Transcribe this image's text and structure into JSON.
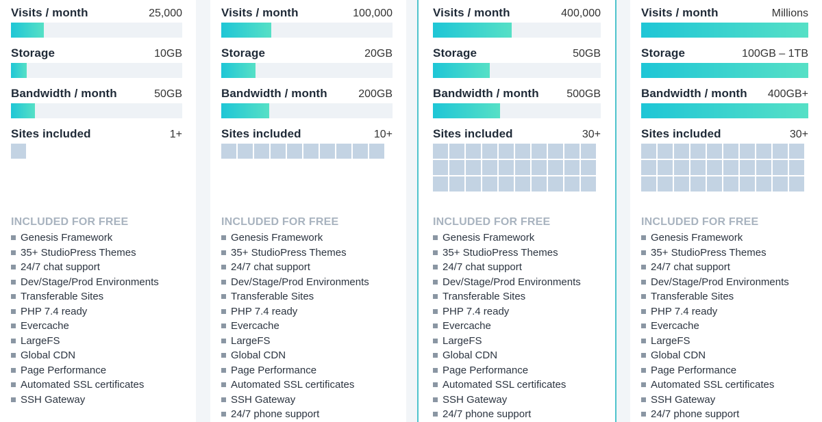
{
  "colors": {
    "accent_start": "#1ec6d6",
    "accent_end": "#56e0c6",
    "site_block": "#c3d3e3",
    "featured_border": "#4ec3cc"
  },
  "labels": {
    "visits": "Visits / month",
    "storage": "Storage",
    "bandwidth": "Bandwidth / month",
    "sites": "Sites included",
    "free_title": "INCLUDED FOR FREE"
  },
  "plans": [
    {
      "visits": "25,000",
      "visits_level": 0.19,
      "storage": "10GB",
      "storage_level": 0.09,
      "bandwidth": "50GB",
      "bandwidth_level": 0.14,
      "sites": "1+",
      "site_blocks": 1,
      "features": [
        "Genesis Framework",
        "35+ StudioPress Themes",
        "24/7 chat support",
        "Dev/Stage/Prod Environments",
        "Transferable Sites",
        "PHP 7.4 ready",
        "Evercache",
        "LargeFS",
        "Global CDN",
        "Page Performance",
        "Automated SSL certificates",
        "SSH Gateway"
      ]
    },
    {
      "visits": "100,000",
      "visits_level": 0.29,
      "storage": "20GB",
      "storage_level": 0.2,
      "bandwidth": "200GB",
      "bandwidth_level": 0.28,
      "sites": "10+",
      "site_blocks": 10,
      "features": [
        "Genesis Framework",
        "35+ StudioPress Themes",
        "24/7 chat support",
        "Dev/Stage/Prod Environments",
        "Transferable Sites",
        "PHP 7.4 ready",
        "Evercache",
        "LargeFS",
        "Global CDN",
        "Page Performance",
        "Automated SSL certificates",
        "SSH Gateway",
        "24/7 phone support"
      ]
    },
    {
      "visits": "400,000",
      "visits_level": 0.47,
      "storage": "50GB",
      "storage_level": 0.34,
      "bandwidth": "500GB",
      "bandwidth_level": 0.4,
      "sites": "30+",
      "site_blocks": 30,
      "features": [
        "Genesis Framework",
        "35+ StudioPress Themes",
        "24/7 chat support",
        "Dev/Stage/Prod Environments",
        "Transferable Sites",
        "PHP 7.4 ready",
        "Evercache",
        "LargeFS",
        "Global CDN",
        "Page Performance",
        "Automated SSL certificates",
        "SSH Gateway",
        "24/7 phone support"
      ]
    },
    {
      "visits": "Millions",
      "visits_level": 1.0,
      "storage": "100GB – 1TB",
      "storage_level": 1.0,
      "bandwidth": "400GB+",
      "bandwidth_level": 1.0,
      "sites": "30+",
      "site_blocks": 30,
      "features": [
        "Genesis Framework",
        "35+ StudioPress Themes",
        "24/7 chat support",
        "Dev/Stage/Prod Environments",
        "Transferable Sites",
        "PHP 7.4 ready",
        "Evercache",
        "LargeFS",
        "Global CDN",
        "Page Performance",
        "Automated SSL certificates",
        "SSH Gateway",
        "24/7 phone support"
      ]
    }
  ]
}
